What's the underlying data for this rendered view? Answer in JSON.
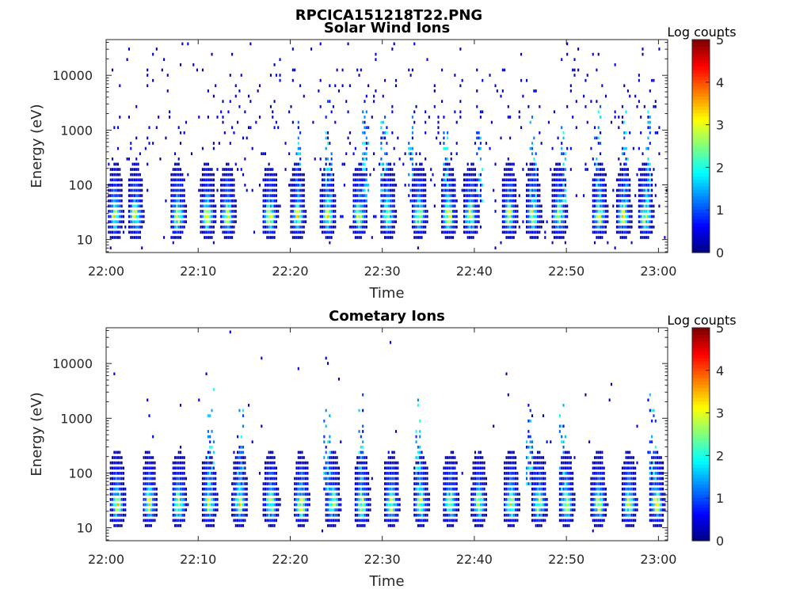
{
  "figure": {
    "title": "RPCICA151218T22.PNG"
  },
  "chart_data": [
    {
      "type": "heatmap",
      "title": "Solar Wind Ions",
      "xlabel": "Time",
      "ylabel": "Energy (eV)",
      "x_ticks": [
        "22:00",
        "22:10",
        "22:20",
        "22:30",
        "22:40",
        "22:50",
        "23:00"
      ],
      "x_range_minutes": [
        0,
        61
      ],
      "y_scale": "log",
      "y_ticks": [
        "10",
        "100",
        "1000",
        "10000"
      ],
      "y_range_ev": [
        5.8,
        45000
      ],
      "colorbar": {
        "title": "Log counts",
        "ticks": [
          "0",
          "1",
          "2",
          "3",
          "4",
          "5"
        ],
        "range": [
          0,
          5
        ],
        "colormap": "jet"
      },
      "bursts_minutes": [
        0.8,
        3.0,
        7.6,
        10.8,
        13.0,
        17.6,
        20.6,
        23.9,
        27.3,
        30.4,
        33.8,
        37.0,
        39.4,
        43.6,
        46.2,
        49.0,
        53.4,
        56.0,
        58.4
      ],
      "background_level": 0.2,
      "high_energy_streaks_minutes": [
        20.9,
        24.2,
        28.2,
        30.2,
        33.1,
        36.9,
        40.6,
        46.4,
        49.7,
        53.4,
        56.4,
        58.9
      ]
    },
    {
      "type": "heatmap",
      "title": "Cometary Ions",
      "xlabel": "Time",
      "ylabel": "Energy (eV)",
      "x_ticks": [
        "22:00",
        "22:10",
        "22:20",
        "22:30",
        "22:40",
        "22:50",
        "23:00"
      ],
      "x_range_minutes": [
        0,
        61
      ],
      "y_scale": "log",
      "y_ticks": [
        "10",
        "100",
        "1000",
        "10000"
      ],
      "y_range_ev": [
        5.8,
        45000
      ],
      "colorbar": {
        "title": "Log counts",
        "ticks": [
          "0",
          "1",
          "2",
          "3",
          "4",
          "5"
        ],
        "range": [
          0,
          5
        ],
        "colormap": "jet"
      },
      "bursts_minutes": [
        1.0,
        4.5,
        7.7,
        11.0,
        14.3,
        17.7,
        21.0,
        24.4,
        27.6,
        30.8,
        34.0,
        37.2,
        40.3,
        43.8,
        46.8,
        49.8,
        53.3,
        56.6,
        59.6
      ],
      "background_level": 0.03,
      "high_energy_streaks_minutes": [
        11.4,
        14.6,
        24.0,
        27.7,
        33.9,
        46.0,
        49.6,
        59.4
      ]
    }
  ]
}
